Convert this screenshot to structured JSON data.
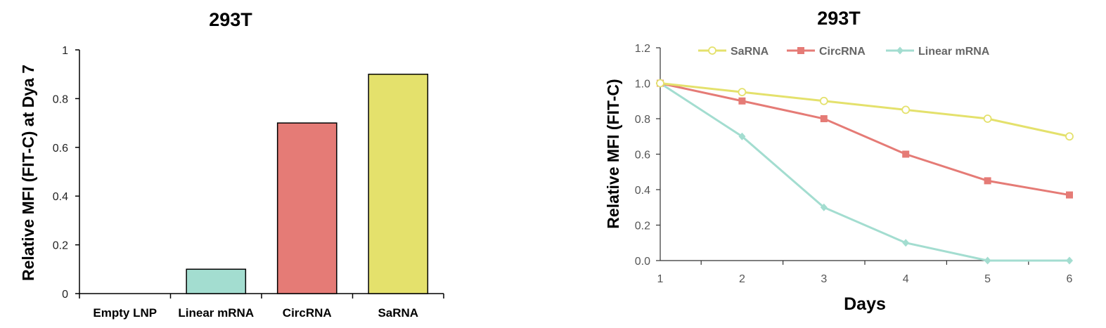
{
  "chart_data": [
    {
      "type": "bar",
      "title": "293T",
      "ylabel": "Relative MFI (FIT-C) at Dya 7",
      "xlabel": "",
      "categories": [
        "Empty LNP",
        "Linear mRNA",
        "CircRNA",
        "SaRNA"
      ],
      "values": [
        0,
        0.1,
        0.7,
        0.9
      ],
      "colors": [
        "#ffffff",
        "#a3ddd0",
        "#e57b76",
        "#e4e16c"
      ],
      "ylim": [
        0,
        1
      ],
      "yticks": [
        "0",
        "0.2",
        "0.4",
        "0.6",
        "0.8",
        "1"
      ],
      "grid": false
    },
    {
      "type": "line",
      "title": "293T",
      "ylabel": "Relative MFI (FIT-C)",
      "xlabel": "Days",
      "x": [
        1,
        2,
        3,
        4,
        5,
        6
      ],
      "xticks": [
        "1",
        "2",
        "3",
        "4",
        "5",
        "6"
      ],
      "yticks": [
        "0.0",
        "0.2",
        "0.4",
        "0.6",
        "0.8",
        "1.0",
        "1.2"
      ],
      "ylim": [
        0,
        1.2
      ],
      "grid": false,
      "legend": "top",
      "series": [
        {
          "name": "SaRNA",
          "values": [
            1.0,
            0.95,
            0.9,
            0.85,
            0.8,
            0.7
          ],
          "color": "#e4e16c",
          "marker": "open-circle"
        },
        {
          "name": "CircRNA",
          "values": [
            1.0,
            0.9,
            0.8,
            0.6,
            0.45,
            0.37
          ],
          "color": "#e57b76",
          "marker": "square"
        },
        {
          "name": "Linear mRNA",
          "values": [
            1.0,
            0.7,
            0.3,
            0.1,
            0.0,
            0.0
          ],
          "color": "#a3ddd0",
          "marker": "diamond"
        }
      ]
    }
  ]
}
